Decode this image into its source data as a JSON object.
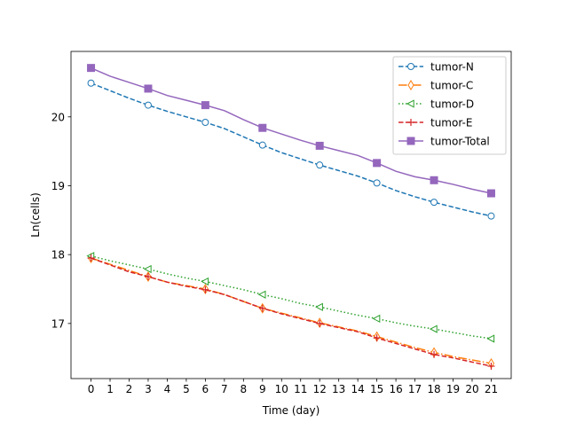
{
  "chart_data": {
    "type": "line",
    "title": "",
    "xlabel": "Time (day)",
    "ylabel": "Ln(cells)",
    "xlim": [
      -1.05,
      22.05
    ],
    "ylim": [
      16.2,
      20.95
    ],
    "xticks": [
      0,
      1,
      2,
      3,
      4,
      5,
      6,
      7,
      8,
      9,
      10,
      11,
      12,
      13,
      14,
      15,
      16,
      17,
      18,
      19,
      20,
      21
    ],
    "yticks": [
      17,
      18,
      19,
      20
    ],
    "grid": false,
    "legend_position": "top-right",
    "series": [
      {
        "name": "tumor-N",
        "color": "#1f77b4",
        "linestyle": "dashed",
        "marker": "circle-open",
        "x": [
          0,
          1,
          2,
          3,
          4,
          5,
          6,
          7,
          8,
          9,
          10,
          11,
          12,
          13,
          14,
          15,
          16,
          17,
          18,
          19,
          20,
          21
        ],
        "y": [
          20.49,
          20.38,
          20.27,
          20.17,
          20.08,
          20.0,
          19.92,
          19.83,
          19.71,
          19.59,
          19.48,
          19.39,
          19.3,
          19.22,
          19.14,
          19.04,
          18.93,
          18.84,
          18.76,
          18.69,
          18.62,
          18.56
        ]
      },
      {
        "name": "tumor-C",
        "color": "#ff7f0e",
        "linestyle": "dashdot",
        "marker": "diamond-open",
        "x": [
          0,
          1,
          2,
          3,
          4,
          5,
          6,
          7,
          8,
          9,
          10,
          11,
          12,
          13,
          14,
          15,
          16,
          17,
          18,
          19,
          20,
          21
        ],
        "y": [
          17.95,
          17.86,
          17.77,
          17.68,
          17.6,
          17.55,
          17.5,
          17.42,
          17.32,
          17.22,
          17.15,
          17.08,
          17.01,
          16.95,
          16.89,
          16.81,
          16.73,
          16.65,
          16.58,
          16.52,
          16.47,
          16.42
        ]
      },
      {
        "name": "tumor-D",
        "color": "#2ca02c",
        "linestyle": "dotted",
        "marker": "triangle-left-open",
        "x": [
          0,
          1,
          2,
          3,
          4,
          5,
          6,
          7,
          8,
          9,
          10,
          11,
          12,
          13,
          14,
          15,
          16,
          17,
          18,
          19,
          20,
          21
        ],
        "y": [
          17.98,
          17.91,
          17.85,
          17.79,
          17.72,
          17.66,
          17.61,
          17.55,
          17.49,
          17.42,
          17.36,
          17.29,
          17.24,
          17.18,
          17.12,
          17.07,
          17.01,
          16.96,
          16.92,
          16.87,
          16.82,
          16.78
        ]
      },
      {
        "name": "tumor-E",
        "color": "#d62728",
        "linestyle": "dashed",
        "marker": "plus",
        "x": [
          0,
          1,
          2,
          3,
          4,
          5,
          6,
          7,
          8,
          9,
          10,
          11,
          12,
          13,
          14,
          15,
          16,
          17,
          18,
          19,
          20,
          21
        ],
        "y": [
          17.95,
          17.85,
          17.75,
          17.68,
          17.6,
          17.54,
          17.49,
          17.42,
          17.32,
          17.22,
          17.14,
          17.07,
          17.0,
          16.94,
          16.88,
          16.79,
          16.71,
          16.63,
          16.55,
          16.5,
          16.44,
          16.38
        ]
      },
      {
        "name": "tumor-Total",
        "color": "#9467bd",
        "linestyle": "solid",
        "marker": "square-filled",
        "x": [
          0,
          1,
          2,
          3,
          4,
          5,
          6,
          7,
          8,
          9,
          10,
          11,
          12,
          13,
          14,
          15,
          16,
          17,
          18,
          19,
          20,
          21
        ],
        "y": [
          20.71,
          20.59,
          20.5,
          20.41,
          20.31,
          20.24,
          20.17,
          20.09,
          19.96,
          19.84,
          19.75,
          19.66,
          19.58,
          19.51,
          19.44,
          19.33,
          19.21,
          19.13,
          19.08,
          19.02,
          18.95,
          18.89
        ]
      }
    ]
  }
}
